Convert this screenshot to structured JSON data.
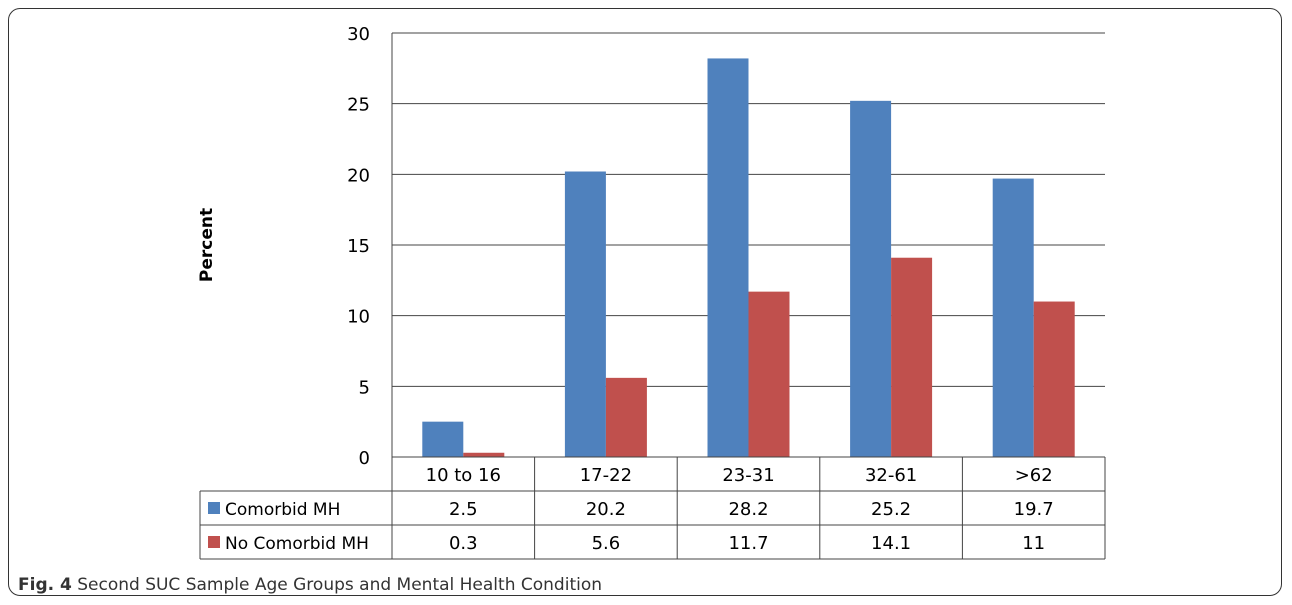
{
  "caption": {
    "label": "Fig. 4",
    "text": "Second SUC Sample Age Groups and Mental Health Condition"
  },
  "chart_data": {
    "type": "bar",
    "ylabel": "Percent",
    "xlabel": "",
    "ylim": [
      0,
      30
    ],
    "yticks": [
      0,
      5,
      10,
      15,
      20,
      25,
      30
    ],
    "grid": true,
    "legend": "data-table",
    "categories": [
      "10 to 16",
      "17-22",
      "23-31",
      "32-61",
      ">62"
    ],
    "series": [
      {
        "name": "Comorbid MH",
        "color": "#4f81bd",
        "values": [
          2.5,
          20.2,
          28.2,
          25.2,
          19.7
        ],
        "labels": [
          "2.5",
          "20.2",
          "28.2",
          "25.2",
          "19.7"
        ]
      },
      {
        "name": "No Comorbid MH",
        "color": "#c0504d",
        "values": [
          0.3,
          5.6,
          11.7,
          14.1,
          11
        ],
        "labels": [
          "0.3",
          "5.6",
          "11.7",
          "14.1",
          "11"
        ]
      }
    ]
  }
}
